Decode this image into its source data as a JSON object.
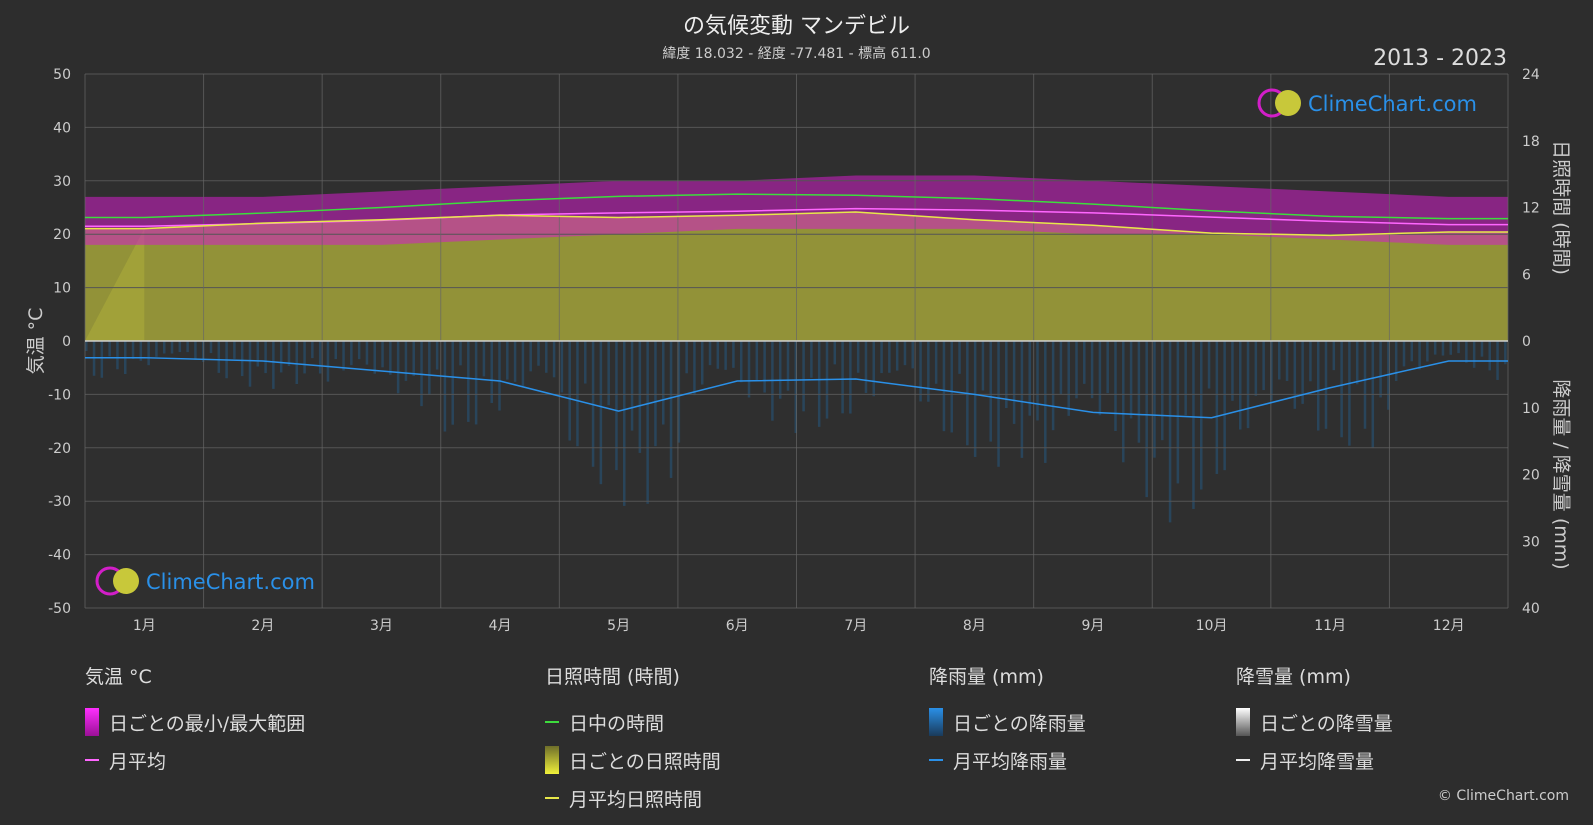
{
  "header": {
    "title": "の気候変動 マンデビル",
    "subtitle": "緯度 18.032 - 経度 -77.481 - 標高 611.0",
    "years": "2013 - 2023"
  },
  "brand": {
    "logo_text": "ClimeChart.com",
    "copyright": "© ClimeChart.com"
  },
  "colors": {
    "background": "#2d2d2d",
    "temp_range": "#d21ec8",
    "temp_avg": "#ff66ff",
    "daylight": "#3ddc3d",
    "sunshine_fill": "#a3a33a",
    "sunshine_avg": "#e8e84a",
    "rain": "#1f6fb0",
    "rain_avg": "#2a90e8",
    "snow": "#ffffff"
  },
  "legend": {
    "temperature": {
      "heading": "気温 °C",
      "range": "日ごとの最小/最大範囲",
      "avg": "月平均"
    },
    "sunshine": {
      "heading": "日照時間 (時間)",
      "daylight": "日中の時間",
      "daily": "日ごとの日照時間",
      "avg": "月平均日照時間"
    },
    "rain": {
      "heading": "降雨量 (mm)",
      "daily": "日ごとの降雨量",
      "avg": "月平均降雨量"
    },
    "snow": {
      "heading": "降雪量 (mm)",
      "daily": "日ごとの降雪量",
      "avg": "月平均降雪量"
    }
  },
  "chart_data": {
    "type": "line",
    "categories": [
      "1月",
      "2月",
      "3月",
      "4月",
      "5月",
      "6月",
      "7月",
      "8月",
      "9月",
      "10月",
      "11月",
      "12月"
    ],
    "y_left": {
      "label": "気温 °C",
      "range": [
        -50,
        50
      ],
      "ticks": [
        -50,
        -40,
        -30,
        -20,
        -10,
        0,
        10,
        20,
        30,
        40,
        50
      ]
    },
    "y_right_sun": {
      "label": "日照時間 (時間)",
      "range": [
        0,
        24
      ],
      "ticks": [
        0,
        6,
        12,
        18,
        24
      ]
    },
    "y_right_rain": {
      "label": "降雨量 / 降雪量 (mm)",
      "range": [
        0,
        40
      ],
      "ticks": [
        0,
        10,
        20,
        30,
        40
      ]
    },
    "series": [
      {
        "name": "日中の時間",
        "axis": "sun",
        "values": [
          11.1,
          11.5,
          12.0,
          12.6,
          13.0,
          13.2,
          13.1,
          12.8,
          12.3,
          11.7,
          11.2,
          11.0
        ]
      },
      {
        "name": "月平均",
        "axis": "temp",
        "values": [
          21.5,
          22.0,
          22.6,
          23.6,
          24.0,
          24.3,
          24.8,
          24.5,
          24.0,
          23.2,
          22.4,
          21.8
        ]
      },
      {
        "name": "月平均日照時間",
        "axis": "sun",
        "values": [
          10.1,
          10.6,
          10.9,
          11.3,
          11.1,
          11.3,
          11.6,
          10.9,
          10.4,
          9.7,
          9.5,
          9.8
        ]
      },
      {
        "name": "月平均降雨量",
        "axis": "rain",
        "values": [
          2.5,
          3.0,
          4.5,
          6.0,
          10.5,
          6.0,
          5.7,
          8.0,
          10.7,
          11.5,
          7.0,
          3.0
        ]
      },
      {
        "name": "月平均降雪量",
        "axis": "rain",
        "values": [
          0,
          0,
          0,
          0,
          0,
          0,
          0,
          0,
          0,
          0,
          0,
          0
        ]
      }
    ],
    "temp_range_band": {
      "min": [
        18,
        18,
        18,
        19,
        20,
        21,
        21,
        21,
        20,
        20,
        19,
        18
      ],
      "max": [
        27,
        27,
        28,
        29,
        30,
        30,
        31,
        31,
        30,
        29,
        28,
        27
      ]
    },
    "legend_position": "bottom",
    "grid": true
  }
}
